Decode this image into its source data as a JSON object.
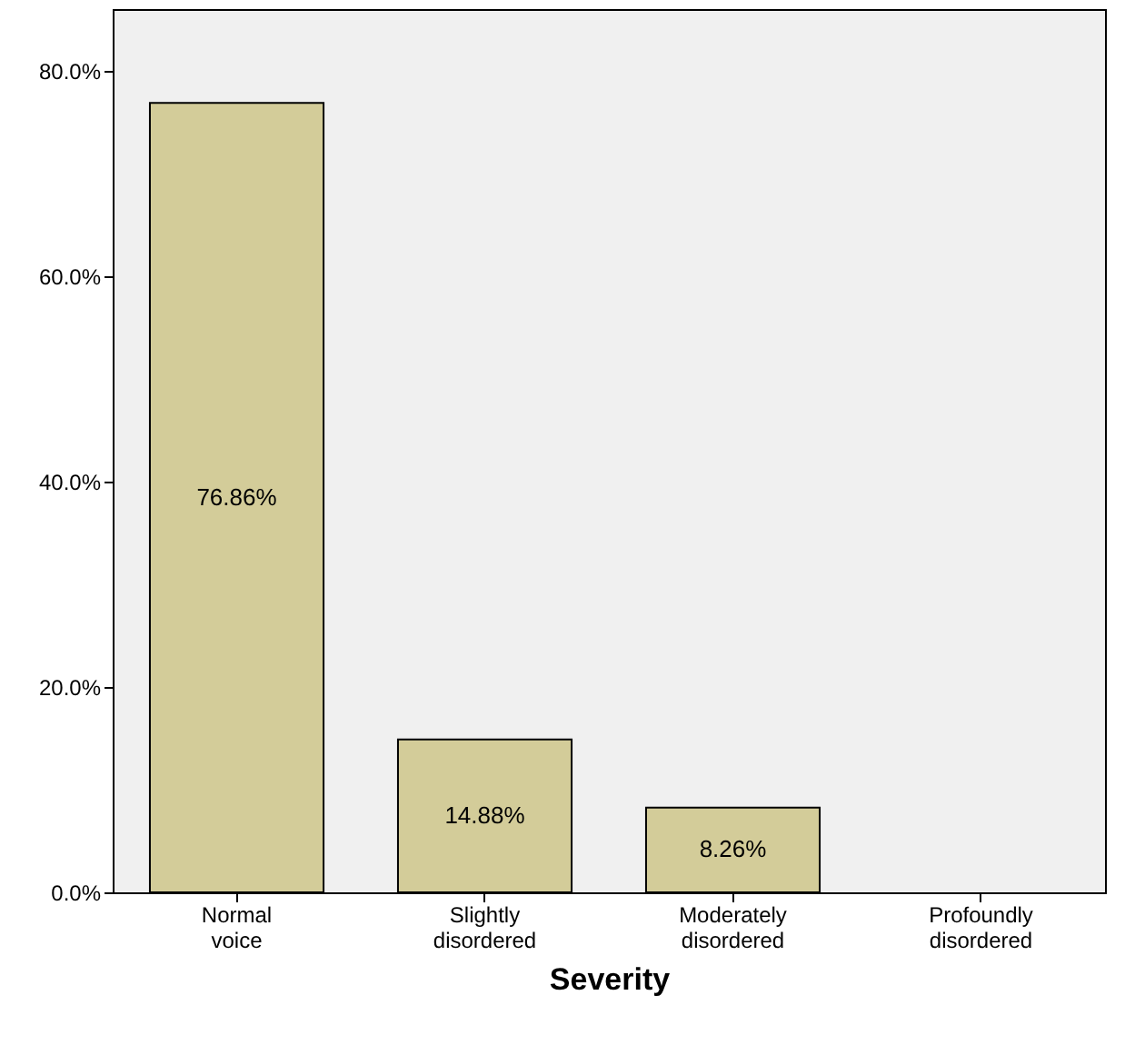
{
  "chart_data": {
    "type": "bar",
    "xlabel": "Severity",
    "categories": [
      "Normal voice",
      "Slightly disordered",
      "Moderately disordered",
      "Profoundly disordered"
    ],
    "values": [
      76.86,
      14.88,
      8.26,
      null
    ],
    "value_labels": [
      "76.86%",
      "14.88%",
      "8.26%",
      null
    ],
    "color": "#d3cc99",
    "ylim": [
      0,
      86
    ],
    "yticks": [
      {
        "value": 0,
        "label": "0.0%"
      },
      {
        "value": 20,
        "label": "20.0%"
      },
      {
        "value": 40,
        "label": "40.0%"
      },
      {
        "value": 60,
        "label": "60.0%"
      },
      {
        "value": 80,
        "label": "80.0%"
      }
    ],
    "grid": false
  }
}
